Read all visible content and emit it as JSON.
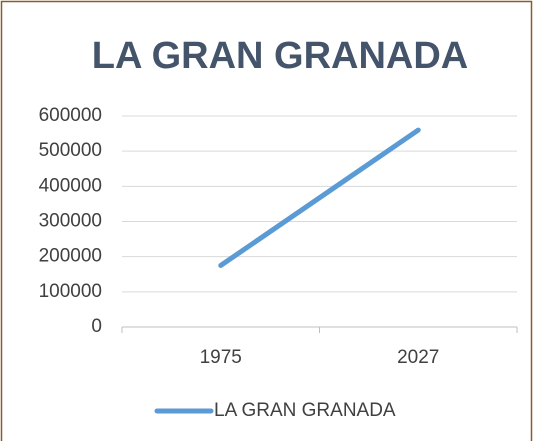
{
  "chart_data": {
    "type": "line",
    "title": "LA GRAN GRANADA",
    "categories": [
      "1975",
      "2027"
    ],
    "series": [
      {
        "name": "LA GRAN GRANADA",
        "color": "#5b9bd5",
        "values": [
          175000,
          560000
        ]
      }
    ],
    "ylim": [
      0,
      600000
    ],
    "yticks": [
      0,
      100000,
      200000,
      300000,
      400000,
      500000,
      600000
    ],
    "grid": true,
    "legend": "bottom"
  }
}
